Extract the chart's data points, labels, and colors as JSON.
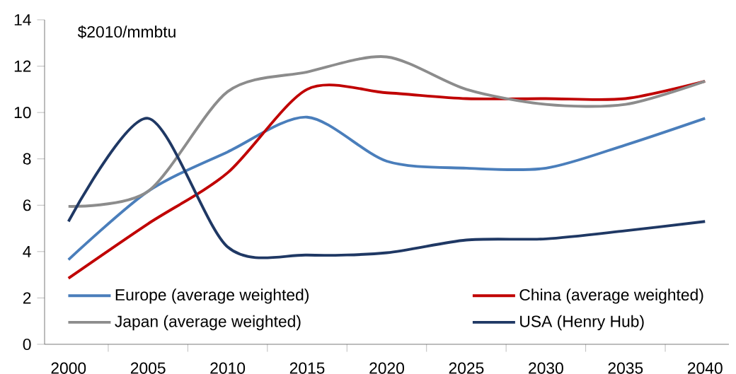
{
  "chart_data": {
    "type": "line",
    "ylabel": "$2010/mmbtu",
    "categories": [
      "2000",
      "2005",
      "2010",
      "2015",
      "2020",
      "2025",
      "2030",
      "2035",
      "2040"
    ],
    "ylim": [
      0,
      14
    ],
    "yticks": [
      0,
      2,
      4,
      6,
      8,
      10,
      12,
      14
    ],
    "legend": "bottom",
    "series": [
      {
        "name": "Europe (average weighted)",
        "color": "#4a7ebb",
        "values": [
          3.65,
          6.6,
          8.3,
          9.8,
          7.9,
          7.6,
          7.6,
          8.6,
          9.75
        ]
      },
      {
        "name": "China (average weighted)",
        "color": "#c00000",
        "values": [
          2.85,
          5.2,
          7.4,
          11.0,
          10.85,
          10.6,
          10.6,
          10.6,
          11.35
        ]
      },
      {
        "name": "Japan (average weighted)",
        "color": "#8c8c8c",
        "values": [
          5.95,
          6.6,
          10.9,
          11.75,
          12.4,
          11.0,
          10.35,
          10.35,
          11.35
        ]
      },
      {
        "name": "USA (Henry Hub)",
        "color": "#1f3864",
        "values": [
          5.3,
          9.75,
          4.2,
          3.85,
          3.95,
          4.5,
          4.55,
          4.9,
          5.3
        ]
      }
    ]
  }
}
